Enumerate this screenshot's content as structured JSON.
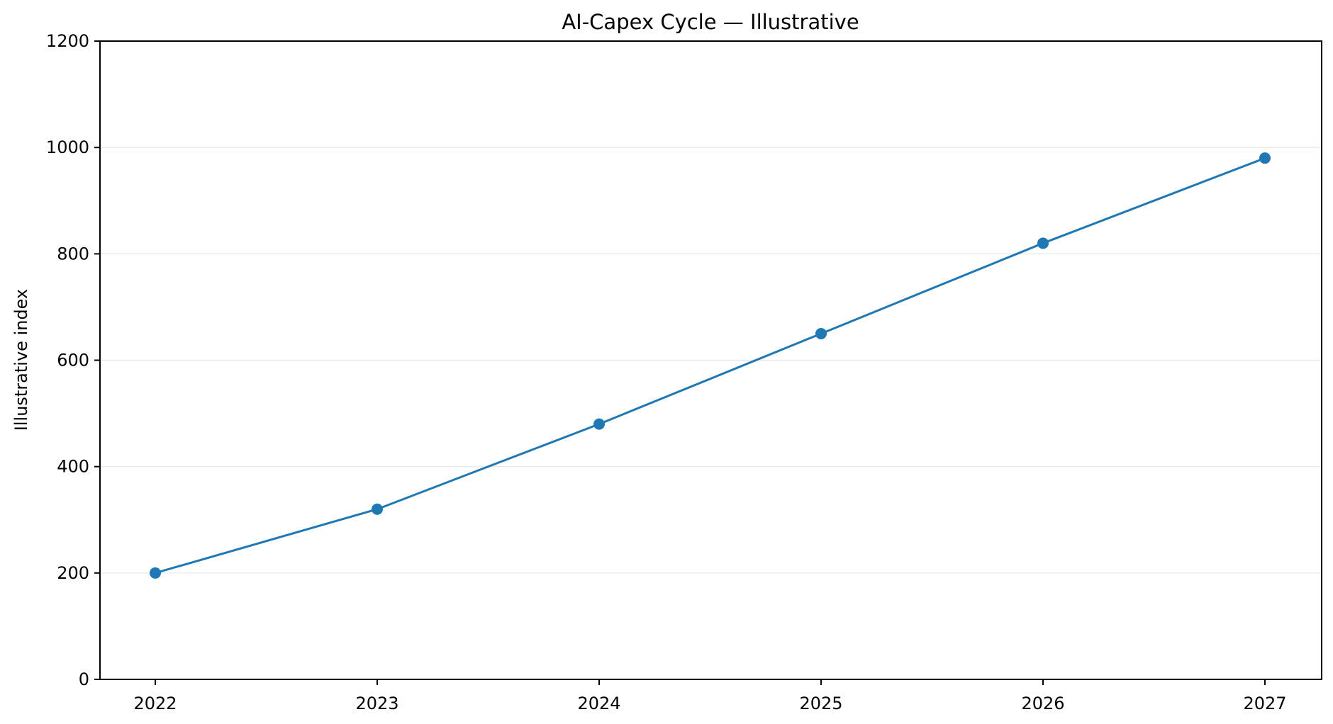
{
  "chart_data": {
    "type": "line",
    "title": "AI-Capex Cycle — Illustrative",
    "xlabel": "",
    "ylabel": "Illustrative index",
    "categories": [
      "2022",
      "2023",
      "2024",
      "2025",
      "2026",
      "2027"
    ],
    "series": [
      {
        "values": [
          200,
          320,
          480,
          650,
          820,
          980
        ],
        "color": "#1f77b4",
        "marker": "circle"
      }
    ],
    "ylim": [
      0,
      1200
    ],
    "yticks": [
      0,
      200,
      400,
      600,
      800,
      1000,
      1200
    ],
    "grid": "horizontal",
    "legend": "none"
  }
}
